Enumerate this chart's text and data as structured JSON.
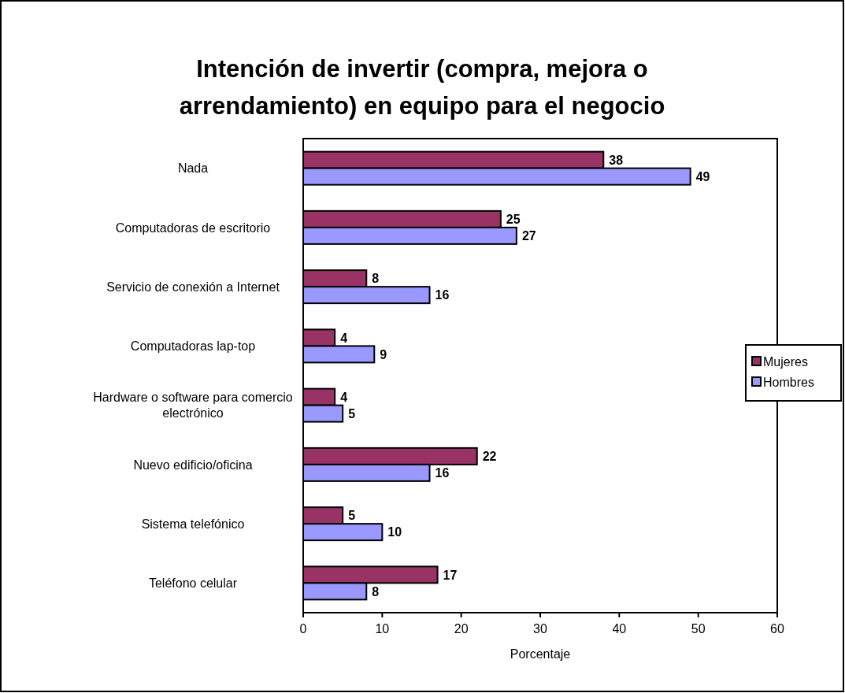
{
  "chart_data": {
    "type": "bar",
    "orientation": "horizontal",
    "title": "Intención de invertir (compra, mejora o arrendamiento) en equipo para el negocio",
    "xlabel": "Porcentaje",
    "categories": [
      "Nada",
      "Computadoras de escritorio",
      "Servicio de conexión a Internet",
      "Computadoras lap-top",
      "Hardware o software para comercio electrónico",
      "Nuevo edificio/oficina",
      "Sistema telefónico",
      "Teléfono celular"
    ],
    "series": [
      {
        "name": "Mujeres",
        "color": "#993366",
        "values": [
          38,
          25,
          8,
          4,
          4,
          22,
          5,
          17
        ]
      },
      {
        "name": "Hombres",
        "color": "#9999ff",
        "values": [
          49,
          27,
          16,
          9,
          5,
          16,
          10,
          8
        ]
      }
    ],
    "xlim": [
      0,
      60
    ],
    "xticks": [
      0,
      10,
      20,
      30,
      40,
      50,
      60
    ],
    "data_labels": true,
    "legend": "right",
    "grid": false
  }
}
